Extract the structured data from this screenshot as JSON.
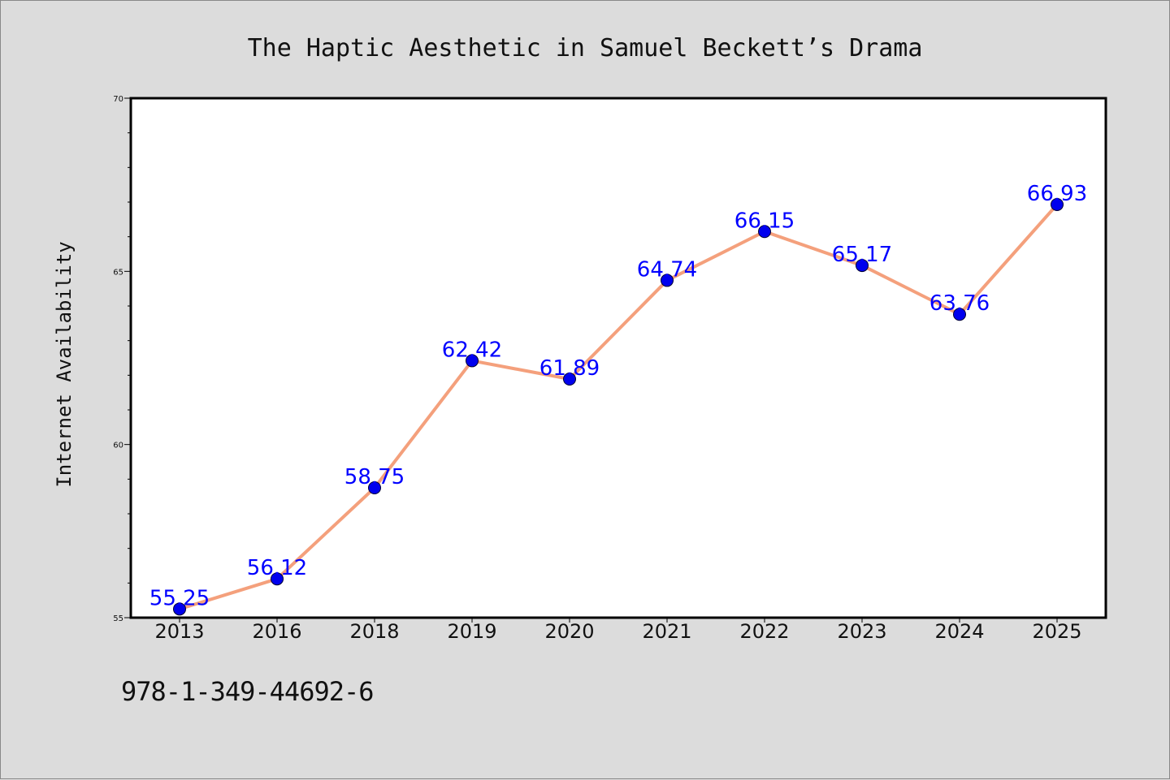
{
  "chart_data": {
    "type": "line",
    "title": "The Haptic Aesthetic in Samuel Beckett’s Drama",
    "xlabel": "",
    "ylabel": "Internet Availability",
    "categories": [
      "2013",
      "2016",
      "2018",
      "2019",
      "2020",
      "2021",
      "2022",
      "2023",
      "2024",
      "2025"
    ],
    "series": [
      {
        "values": [
          55.25,
          56.12,
          58.75,
          62.42,
          61.89,
          64.74,
          66.15,
          65.17,
          63.76,
          66.93
        ],
        "labels": [
          "55.25",
          "56.12",
          "58.75",
          "62.42",
          "61.89",
          "64.74",
          "66.15",
          "65.17",
          "63.76",
          "66.93"
        ],
        "line_color": "#f4a07c",
        "marker_color": "#0000ee",
        "label_color": "#0000ff"
      }
    ],
    "ylim": [
      55,
      70
    ],
    "yticks": [
      "55",
      "60",
      "65",
      "70"
    ],
    "grid": false,
    "legend": "none"
  },
  "footer": {
    "isbn": "978-1-349-44692-6"
  },
  "colors": {
    "background": "#dcdcdc",
    "plot_background": "#ffffff"
  }
}
